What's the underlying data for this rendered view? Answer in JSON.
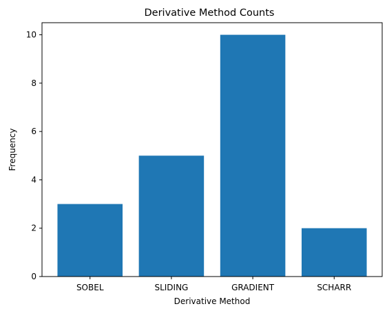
{
  "chart_data": {
    "type": "bar",
    "title": "Derivative Method Counts",
    "xlabel": "Derivative Method",
    "ylabel": "Frequency",
    "categories": [
      "SOBEL",
      "SLIDING",
      "GRADIENT",
      "SCHARR"
    ],
    "values": [
      3,
      5,
      10,
      2
    ],
    "ylim": [
      0,
      10.5
    ],
    "yticks": [
      0,
      2,
      4,
      6,
      8,
      10
    ],
    "grid": false,
    "legend": "none",
    "bar_color": "#1f77b4"
  }
}
